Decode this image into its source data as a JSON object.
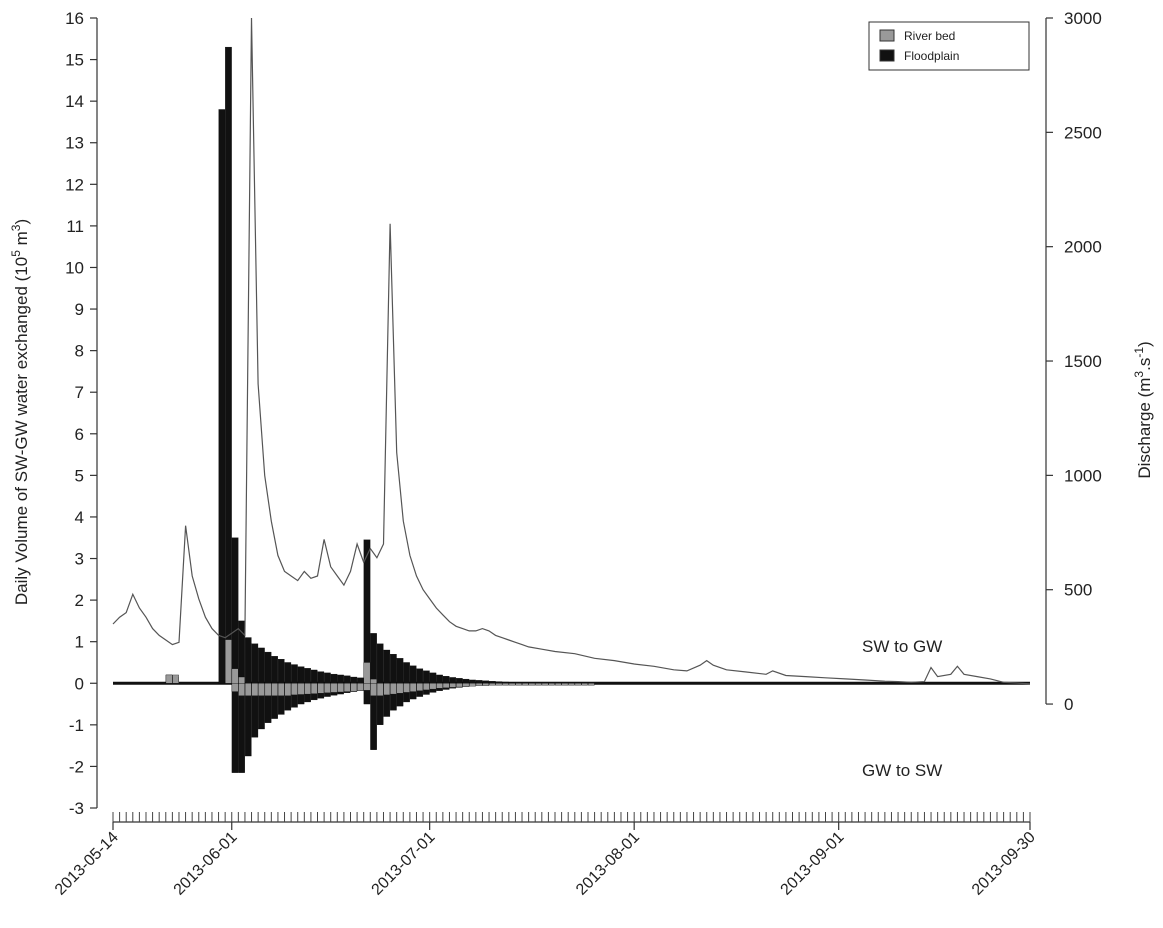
{
  "chart_data": {
    "type": "bar",
    "title": "",
    "ylabel_left": {
      "main": "Daily Volume of SW-GW water exchanged (10",
      "sup1": "5",
      "mid": " m",
      "sup2": "3",
      "end": ")"
    },
    "ylabel_right": {
      "main": "Discharge (m",
      "sup1": "3",
      "mid": ".s",
      "sup2": "-1",
      "end": ")"
    },
    "left_axis": {
      "min": -3,
      "max": 16,
      "ticks": [
        "-3",
        "-2",
        "-1",
        "0",
        "1",
        "2",
        "3",
        "4",
        "5",
        "6",
        "7",
        "8",
        "9",
        "10",
        "11",
        "12",
        "13",
        "14",
        "15",
        "16"
      ]
    },
    "right_axis": {
      "min": 0,
      "max": 3000,
      "ticks": [
        "0",
        "500",
        "1000",
        "1500",
        "2000",
        "2500",
        "3000"
      ]
    },
    "x_axis": {
      "start": "2013-05-14",
      "end": "2013-09-30",
      "tick_labels": [
        "2013-05-14",
        "2013-06-01",
        "2013-07-01",
        "2013-08-01",
        "2013-09-01",
        "2013-09-30"
      ],
      "minor_ticks": "daily"
    },
    "legend": {
      "placement": "top-right",
      "entries": [
        {
          "name": "River bed",
          "color": "#999999"
        },
        {
          "name": "Floodplain",
          "color": "#111111"
        }
      ]
    },
    "annotations": [
      {
        "text": "SW to GW"
      },
      {
        "text": "GW to SW"
      }
    ],
    "series": [
      {
        "name": "Floodplain",
        "kind": "bars_positive",
        "color": "#111111",
        "points": [
          [
            "2013-05-30",
            13.8
          ],
          [
            "2013-05-31",
            15.3
          ],
          [
            "2013-06-01",
            3.5
          ],
          [
            "2013-06-02",
            1.5
          ],
          [
            "2013-06-03",
            1.1
          ],
          [
            "2013-06-04",
            0.95
          ],
          [
            "2013-06-05",
            0.85
          ],
          [
            "2013-06-06",
            0.75
          ],
          [
            "2013-06-07",
            0.65
          ],
          [
            "2013-06-08",
            0.58
          ],
          [
            "2013-06-09",
            0.5
          ],
          [
            "2013-06-10",
            0.45
          ],
          [
            "2013-06-11",
            0.4
          ],
          [
            "2013-06-12",
            0.36
          ],
          [
            "2013-06-13",
            0.32
          ],
          [
            "2013-06-14",
            0.28
          ],
          [
            "2013-06-15",
            0.25
          ],
          [
            "2013-06-16",
            0.22
          ],
          [
            "2013-06-17",
            0.2
          ],
          [
            "2013-06-18",
            0.18
          ],
          [
            "2013-06-19",
            0.15
          ],
          [
            "2013-06-20",
            0.13
          ],
          [
            "2013-06-21",
            3.45
          ],
          [
            "2013-06-22",
            1.2
          ],
          [
            "2013-06-23",
            0.95
          ],
          [
            "2013-06-24",
            0.8
          ],
          [
            "2013-06-25",
            0.7
          ],
          [
            "2013-06-26",
            0.6
          ],
          [
            "2013-06-27",
            0.5
          ],
          [
            "2013-06-28",
            0.42
          ],
          [
            "2013-06-29",
            0.35
          ],
          [
            "2013-06-30",
            0.3
          ],
          [
            "2013-07-01",
            0.25
          ],
          [
            "2013-07-02",
            0.2
          ],
          [
            "2013-07-03",
            0.17
          ],
          [
            "2013-07-04",
            0.14
          ],
          [
            "2013-07-05",
            0.12
          ],
          [
            "2013-07-06",
            0.1
          ],
          [
            "2013-07-07",
            0.08
          ],
          [
            "2013-07-08",
            0.07
          ],
          [
            "2013-07-09",
            0.06
          ],
          [
            "2013-07-10",
            0.05
          ],
          [
            "2013-07-11",
            0.04
          ],
          [
            "2013-07-12",
            0.03
          ],
          [
            "2013-07-13",
            0.02
          ],
          [
            "2013-05-22",
            0.2
          ],
          [
            "2013-05-23",
            0.15
          ]
        ]
      },
      {
        "name": "Floodplain",
        "kind": "bars_negative",
        "color": "#111111",
        "points": [
          [
            "2013-06-01",
            -2.15
          ],
          [
            "2013-06-02",
            -2.15
          ],
          [
            "2013-06-03",
            -1.75
          ],
          [
            "2013-06-04",
            -1.3
          ],
          [
            "2013-06-05",
            -1.1
          ],
          [
            "2013-06-06",
            -0.95
          ],
          [
            "2013-06-07",
            -0.85
          ],
          [
            "2013-06-08",
            -0.75
          ],
          [
            "2013-06-09",
            -0.65
          ],
          [
            "2013-06-10",
            -0.58
          ],
          [
            "2013-06-11",
            -0.5
          ],
          [
            "2013-06-12",
            -0.45
          ],
          [
            "2013-06-13",
            -0.4
          ],
          [
            "2013-06-14",
            -0.36
          ],
          [
            "2013-06-15",
            -0.32
          ],
          [
            "2013-06-16",
            -0.29
          ],
          [
            "2013-06-17",
            -0.26
          ],
          [
            "2013-06-18",
            -0.23
          ],
          [
            "2013-06-19",
            -0.2
          ],
          [
            "2013-06-20",
            -0.18
          ],
          [
            "2013-06-21",
            -0.5
          ],
          [
            "2013-06-22",
            -1.6
          ],
          [
            "2013-06-23",
            -1.0
          ],
          [
            "2013-06-24",
            -0.8
          ],
          [
            "2013-06-25",
            -0.65
          ],
          [
            "2013-06-26",
            -0.55
          ],
          [
            "2013-06-27",
            -0.45
          ],
          [
            "2013-06-28",
            -0.38
          ],
          [
            "2013-06-29",
            -0.32
          ],
          [
            "2013-06-30",
            -0.27
          ],
          [
            "2013-07-01",
            -0.22
          ],
          [
            "2013-07-02",
            -0.18
          ],
          [
            "2013-07-03",
            -0.15
          ],
          [
            "2013-07-04",
            -0.12
          ],
          [
            "2013-07-05",
            -0.1
          ],
          [
            "2013-07-06",
            -0.08
          ],
          [
            "2013-07-07",
            -0.06
          ],
          [
            "2013-07-08",
            -0.05
          ],
          [
            "2013-07-09",
            -0.04
          ],
          [
            "2013-07-10",
            -0.03
          ]
        ]
      },
      {
        "name": "River bed",
        "kind": "bars_positive",
        "color": "#999999",
        "points": [
          [
            "2013-05-31",
            1.05
          ],
          [
            "2013-06-01",
            0.35
          ],
          [
            "2013-06-02",
            0.15
          ],
          [
            "2013-06-21",
            0.5
          ],
          [
            "2013-06-22",
            0.1
          ],
          [
            "2013-05-22",
            0.2
          ],
          [
            "2013-05-23",
            0.2
          ]
        ]
      },
      {
        "name": "River bed",
        "kind": "bars_negative",
        "color": "#999999",
        "points": [
          [
            "2013-06-01",
            -0.2
          ],
          [
            "2013-06-02",
            -0.3
          ],
          [
            "2013-06-03",
            -0.3
          ],
          [
            "2013-06-04",
            -0.3
          ],
          [
            "2013-06-05",
            -0.3
          ],
          [
            "2013-06-06",
            -0.3
          ],
          [
            "2013-06-07",
            -0.3
          ],
          [
            "2013-06-08",
            -0.3
          ],
          [
            "2013-06-09",
            -0.3
          ],
          [
            "2013-06-10",
            -0.28
          ],
          [
            "2013-06-11",
            -0.27
          ],
          [
            "2013-06-12",
            -0.26
          ],
          [
            "2013-06-13",
            -0.25
          ],
          [
            "2013-06-14",
            -0.24
          ],
          [
            "2013-06-15",
            -0.23
          ],
          [
            "2013-06-16",
            -0.22
          ],
          [
            "2013-06-17",
            -0.21
          ],
          [
            "2013-06-18",
            -0.2
          ],
          [
            "2013-06-19",
            -0.19
          ],
          [
            "2013-06-20",
            -0.18
          ],
          [
            "2013-06-21",
            -0.17
          ],
          [
            "2013-06-22",
            -0.3
          ],
          [
            "2013-06-23",
            -0.3
          ],
          [
            "2013-06-24",
            -0.28
          ],
          [
            "2013-06-25",
            -0.26
          ],
          [
            "2013-06-26",
            -0.24
          ],
          [
            "2013-06-27",
            -0.22
          ],
          [
            "2013-06-28",
            -0.2
          ],
          [
            "2013-06-29",
            -0.18
          ],
          [
            "2013-06-30",
            -0.16
          ],
          [
            "2013-07-01",
            -0.14
          ],
          [
            "2013-07-02",
            -0.12
          ],
          [
            "2013-07-03",
            -0.11
          ],
          [
            "2013-07-04",
            -0.1
          ],
          [
            "2013-07-05",
            -0.09
          ],
          [
            "2013-07-06",
            -0.08
          ],
          [
            "2013-07-07",
            -0.07
          ],
          [
            "2013-07-08",
            -0.06
          ],
          [
            "2013-07-09",
            -0.06
          ],
          [
            "2013-07-10",
            -0.05
          ],
          [
            "2013-07-11",
            -0.05
          ],
          [
            "2013-07-12",
            -0.05
          ],
          [
            "2013-07-13",
            -0.05
          ],
          [
            "2013-07-14",
            -0.05
          ],
          [
            "2013-07-15",
            -0.05
          ],
          [
            "2013-07-16",
            -0.05
          ],
          [
            "2013-07-17",
            -0.05
          ],
          [
            "2013-07-18",
            -0.05
          ],
          [
            "2013-07-19",
            -0.05
          ],
          [
            "2013-07-20",
            -0.05
          ],
          [
            "2013-07-21",
            -0.05
          ],
          [
            "2013-07-22",
            -0.05
          ],
          [
            "2013-07-23",
            -0.05
          ],
          [
            "2013-07-24",
            -0.05
          ],
          [
            "2013-07-25",
            -0.05
          ]
        ]
      },
      {
        "name": "Discharge",
        "kind": "line_right_axis",
        "color": "#555555",
        "points": [
          [
            "2013-05-14",
            350
          ],
          [
            "2013-05-15",
            380
          ],
          [
            "2013-05-16",
            400
          ],
          [
            "2013-05-17",
            480
          ],
          [
            "2013-05-18",
            420
          ],
          [
            "2013-05-19",
            380
          ],
          [
            "2013-05-20",
            330
          ],
          [
            "2013-05-21",
            300
          ],
          [
            "2013-05-22",
            280
          ],
          [
            "2013-05-23",
            260
          ],
          [
            "2013-05-24",
            270
          ],
          [
            "2013-05-25",
            780
          ],
          [
            "2013-05-26",
            560
          ],
          [
            "2013-05-27",
            460
          ],
          [
            "2013-05-28",
            380
          ],
          [
            "2013-05-29",
            330
          ],
          [
            "2013-05-30",
            300
          ],
          [
            "2013-05-31",
            290
          ],
          [
            "2013-06-01",
            310
          ],
          [
            "2013-06-02",
            330
          ],
          [
            "2013-06-03",
            300
          ],
          [
            "2013-06-04",
            3000
          ],
          [
            "2013-06-05",
            1400
          ],
          [
            "2013-06-06",
            1000
          ],
          [
            "2013-06-07",
            800
          ],
          [
            "2013-06-08",
            650
          ],
          [
            "2013-06-09",
            580
          ],
          [
            "2013-06-10",
            560
          ],
          [
            "2013-06-11",
            540
          ],
          [
            "2013-06-12",
            580
          ],
          [
            "2013-06-13",
            550
          ],
          [
            "2013-06-14",
            560
          ],
          [
            "2013-06-15",
            720
          ],
          [
            "2013-06-16",
            600
          ],
          [
            "2013-06-17",
            560
          ],
          [
            "2013-06-18",
            520
          ],
          [
            "2013-06-19",
            580
          ],
          [
            "2013-06-20",
            700
          ],
          [
            "2013-06-21",
            620
          ],
          [
            "2013-06-22",
            680
          ],
          [
            "2013-06-23",
            640
          ],
          [
            "2013-06-24",
            700
          ],
          [
            "2013-06-25",
            2100
          ],
          [
            "2013-06-26",
            1100
          ],
          [
            "2013-06-27",
            800
          ],
          [
            "2013-06-28",
            650
          ],
          [
            "2013-06-29",
            560
          ],
          [
            "2013-06-30",
            500
          ],
          [
            "2013-07-01",
            460
          ],
          [
            "2013-07-02",
            420
          ],
          [
            "2013-07-03",
            390
          ],
          [
            "2013-07-04",
            360
          ],
          [
            "2013-07-05",
            340
          ],
          [
            "2013-07-06",
            330
          ],
          [
            "2013-07-07",
            320
          ],
          [
            "2013-07-08",
            320
          ],
          [
            "2013-07-09",
            330
          ],
          [
            "2013-07-10",
            320
          ],
          [
            "2013-07-11",
            300
          ],
          [
            "2013-07-12",
            290
          ],
          [
            "2013-07-13",
            280
          ],
          [
            "2013-07-14",
            270
          ],
          [
            "2013-07-15",
            260
          ],
          [
            "2013-07-16",
            250
          ],
          [
            "2013-07-18",
            240
          ],
          [
            "2013-07-20",
            230
          ],
          [
            "2013-07-23",
            220
          ],
          [
            "2013-07-26",
            200
          ],
          [
            "2013-07-29",
            190
          ],
          [
            "2013-08-01",
            175
          ],
          [
            "2013-08-04",
            165
          ],
          [
            "2013-08-07",
            150
          ],
          [
            "2013-08-09",
            145
          ],
          [
            "2013-08-11",
            170
          ],
          [
            "2013-08-12",
            190
          ],
          [
            "2013-08-13",
            170
          ],
          [
            "2013-08-15",
            150
          ],
          [
            "2013-08-18",
            140
          ],
          [
            "2013-08-21",
            130
          ],
          [
            "2013-08-22",
            145
          ],
          [
            "2013-08-24",
            125
          ],
          [
            "2013-08-27",
            120
          ],
          [
            "2013-08-30",
            115
          ],
          [
            "2013-09-02",
            110
          ],
          [
            "2013-09-05",
            105
          ],
          [
            "2013-09-08",
            100
          ],
          [
            "2013-09-10",
            98
          ],
          [
            "2013-09-12",
            95
          ],
          [
            "2013-09-14",
            98
          ],
          [
            "2013-09-15",
            160
          ],
          [
            "2013-09-16",
            120
          ],
          [
            "2013-09-18",
            130
          ],
          [
            "2013-09-19",
            165
          ],
          [
            "2013-09-20",
            130
          ],
          [
            "2013-09-22",
            120
          ],
          [
            "2013-09-24",
            110
          ],
          [
            "2013-09-26",
            95
          ],
          [
            "2013-09-28",
            92
          ],
          [
            "2013-09-30",
            88
          ]
        ]
      }
    ]
  }
}
